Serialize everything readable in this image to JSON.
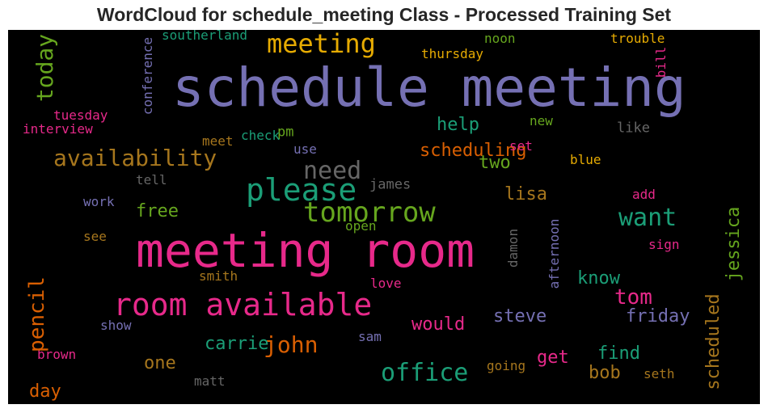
{
  "title": "WordCloud for schedule_meeting Class - Processed Training Set",
  "palette": [
    "#7570b3",
    "#e7298a",
    "#1b9e77",
    "#d95f02",
    "#66a61e",
    "#e6ab02",
    "#a6761d",
    "#666666"
  ],
  "words": [
    {
      "text": "schedule meeting",
      "color": "#7570b3"
    },
    {
      "text": "meeting room",
      "color": "#e7298a"
    },
    {
      "text": "room available",
      "color": "#e7298a"
    },
    {
      "text": "meeting",
      "color": "#e6ab02"
    },
    {
      "text": "please",
      "color": "#1b9e77"
    },
    {
      "text": "tomorrow",
      "color": "#66a61e"
    },
    {
      "text": "availability",
      "color": "#a6761d"
    },
    {
      "text": "need",
      "color": "#666666"
    },
    {
      "text": "want",
      "color": "#1b9e77"
    },
    {
      "text": "office",
      "color": "#1b9e77"
    },
    {
      "text": "john",
      "color": "#d95f02"
    },
    {
      "text": "tom",
      "color": "#e7298a"
    },
    {
      "text": "help",
      "color": "#1b9e77"
    },
    {
      "text": "scheduling",
      "color": "#d95f02"
    },
    {
      "text": "two",
      "color": "#66a61e"
    },
    {
      "text": "lisa",
      "color": "#a6761d"
    },
    {
      "text": "free",
      "color": "#66a61e"
    },
    {
      "text": "steve",
      "color": "#7570b3"
    },
    {
      "text": "friday",
      "color": "#7570b3"
    },
    {
      "text": "find",
      "color": "#1b9e77"
    },
    {
      "text": "carrie",
      "color": "#1b9e77"
    },
    {
      "text": "would",
      "color": "#e7298a"
    },
    {
      "text": "know",
      "color": "#1b9e77"
    },
    {
      "text": "one",
      "color": "#a6761d"
    },
    {
      "text": "bob",
      "color": "#a6761d"
    },
    {
      "text": "get",
      "color": "#e7298a"
    },
    {
      "text": "day",
      "color": "#d95f02"
    },
    {
      "text": "james",
      "color": "#666666"
    },
    {
      "text": "like",
      "color": "#666666"
    },
    {
      "text": "pm",
      "color": "#66a61e"
    },
    {
      "text": "noon",
      "color": "#66a61e"
    },
    {
      "text": "thursday",
      "color": "#e6ab02"
    },
    {
      "text": "southerland",
      "color": "#1b9e77"
    },
    {
      "text": "trouble",
      "color": "#e6ab02"
    },
    {
      "text": "tuesday",
      "color": "#e7298a"
    },
    {
      "text": "interview",
      "color": "#e7298a"
    },
    {
      "text": "new",
      "color": "#66a61e"
    },
    {
      "text": "meet",
      "color": "#a6761d"
    },
    {
      "text": "check",
      "color": "#1b9e77"
    },
    {
      "text": "use",
      "color": "#7570b3"
    },
    {
      "text": "set",
      "color": "#e7298a"
    },
    {
      "text": "blue",
      "color": "#e6ab02"
    },
    {
      "text": "tell",
      "color": "#666666"
    },
    {
      "text": "work",
      "color": "#7570b3"
    },
    {
      "text": "add",
      "color": "#e7298a"
    },
    {
      "text": "open",
      "color": "#66a61e"
    },
    {
      "text": "see",
      "color": "#a6761d"
    },
    {
      "text": "sign",
      "color": "#e7298a"
    },
    {
      "text": "smith",
      "color": "#a6761d"
    },
    {
      "text": "love",
      "color": "#e7298a"
    },
    {
      "text": "show",
      "color": "#7570b3"
    },
    {
      "text": "sam",
      "color": "#7570b3"
    },
    {
      "text": "brown",
      "color": "#e7298a"
    },
    {
      "text": "going",
      "color": "#a6761d"
    },
    {
      "text": "seth",
      "color": "#a6761d"
    },
    {
      "text": "matt",
      "color": "#666666"
    },
    {
      "text": "today",
      "color": "#66a61e"
    },
    {
      "text": "pencil",
      "color": "#d95f02"
    },
    {
      "text": "jessica",
      "color": "#66a61e"
    },
    {
      "text": "scheduled",
      "color": "#a6761d"
    },
    {
      "text": "conference",
      "color": "#7570b3"
    },
    {
      "text": "bill",
      "color": "#e7298a"
    },
    {
      "text": "damon",
      "color": "#666666"
    },
    {
      "text": "afternoon",
      "color": "#7570b3"
    }
  ]
}
